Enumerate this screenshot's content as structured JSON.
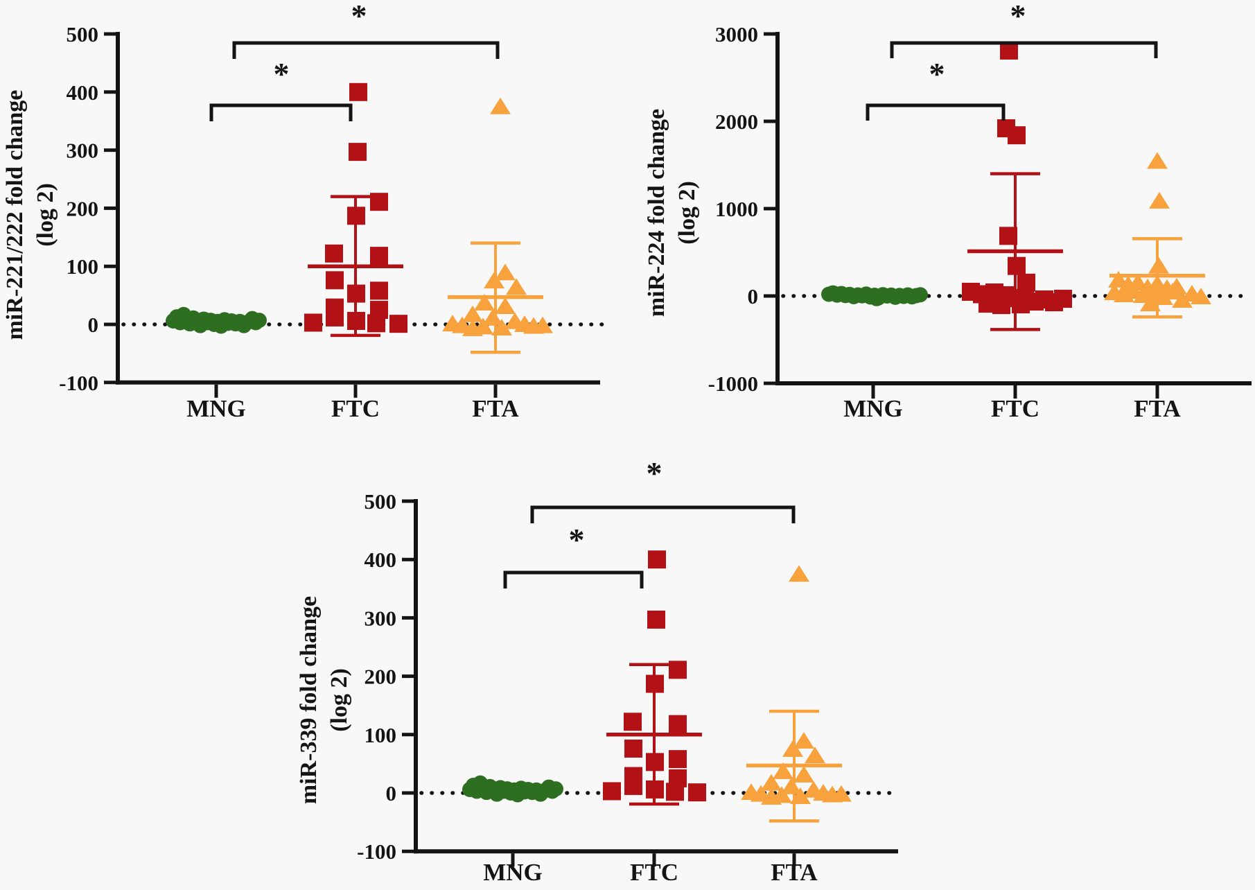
{
  "figure": {
    "background": "#f8f8f9",
    "description": "Three scatter dot plots comparing miRNA fold changes in MNG, FTC and FTA groups with mean/SD error bars and significance brackets"
  },
  "colors": {
    "mng": "#2d6e20",
    "ftc": "#b21216",
    "fta": "#f7a23c",
    "axis": "#141414"
  },
  "chart_data": [
    {
      "id": "mir221_222",
      "type": "scatter",
      "title": "",
      "ylabel_lines": [
        "miR-221/222 fold change",
        "(log 2)"
      ],
      "ylim": [
        -100,
        500
      ],
      "yticks": [
        500,
        400,
        300,
        200,
        100,
        0,
        -100
      ],
      "zero_line": 0,
      "grid": false,
      "categories": [
        "MNG",
        "FTC",
        "FTA"
      ],
      "groups": [
        {
          "name": "MNG",
          "marker": "circle",
          "color_key": "mng",
          "mean": null,
          "err_low": null,
          "err_high": null,
          "points": [
            [
              -62,
              6
            ],
            [
              -57,
              13
            ],
            [
              -52,
              3
            ],
            [
              -47,
              17
            ],
            [
              -43,
              8
            ],
            [
              -38,
              1
            ],
            [
              -33,
              11
            ],
            [
              -28,
              5
            ],
            [
              -23,
              -2
            ],
            [
              -18,
              9
            ],
            [
              -13,
              3
            ],
            [
              -8,
              7
            ],
            [
              -3,
              0
            ],
            [
              2,
              5
            ],
            [
              7,
              -3
            ],
            [
              12,
              8
            ],
            [
              17,
              2
            ],
            [
              22,
              6
            ],
            [
              28,
              1
            ],
            [
              34,
              5
            ],
            [
              40,
              -2
            ],
            [
              46,
              4
            ],
            [
              52,
              10
            ],
            [
              57,
              3
            ],
            [
              62,
              7
            ]
          ]
        },
        {
          "name": "FTC",
          "marker": "square",
          "color_key": "ftc",
          "mean": 100,
          "err_low": -19,
          "err_high": 220,
          "points": [
            [
              4,
              400
            ],
            [
              3,
              297
            ],
            [
              34,
              211
            ],
            [
              1,
              187
            ],
            [
              -31,
              122
            ],
            [
              34,
              118
            ],
            [
              -30,
              76
            ],
            [
              1,
              53
            ],
            [
              34,
              58
            ],
            [
              -30,
              29
            ],
            [
              34,
              25
            ],
            [
              -30,
              12
            ],
            [
              1,
              6
            ],
            [
              -61,
              3
            ],
            [
              30,
              2
            ],
            [
              62,
              1
            ]
          ]
        },
        {
          "name": "FTA",
          "marker": "triangle",
          "color_key": "fta",
          "mean": 47,
          "err_low": -48,
          "err_high": 140,
          "points": [
            [
              7,
              375
            ],
            [
              14,
              89
            ],
            [
              -2,
              75
            ],
            [
              30,
              64
            ],
            [
              -16,
              37
            ],
            [
              14,
              31
            ],
            [
              -33,
              17
            ],
            [
              -4,
              11
            ],
            [
              28,
              5
            ],
            [
              -62,
              1
            ],
            [
              -48,
              -2
            ],
            [
              -18,
              -4
            ],
            [
              9,
              -6
            ],
            [
              42,
              0
            ],
            [
              55,
              -3
            ],
            [
              68,
              -2
            ],
            [
              -33,
              -7
            ]
          ]
        }
      ],
      "comparisons": [
        {
          "between": [
            "MNG",
            "FTC"
          ],
          "label": "*"
        },
        {
          "between": [
            "MNG",
            "FTA"
          ],
          "label": "*"
        }
      ]
    },
    {
      "id": "mir224",
      "type": "scatter",
      "title": "",
      "ylabel_lines": [
        "miR-224 fold change",
        "(log 2)"
      ],
      "ylim": [
        -1000,
        3000
      ],
      "yticks": [
        3000,
        2000,
        1000,
        0,
        -1000
      ],
      "zero_line": 0,
      "grid": false,
      "categories": [
        "MNG",
        "FTC",
        "FTA"
      ],
      "groups": [
        {
          "name": "MNG",
          "marker": "circle",
          "color_key": "mng",
          "mean": null,
          "err_low": null,
          "err_high": null,
          "points": [
            [
              -64,
              20
            ],
            [
              -58,
              35
            ],
            [
              -52,
              10
            ],
            [
              -46,
              28
            ],
            [
              -40,
              5
            ],
            [
              -34,
              18
            ],
            [
              -28,
              -8
            ],
            [
              -22,
              12
            ],
            [
              -16,
              2
            ],
            [
              -10,
              22
            ],
            [
              -4,
              -12
            ],
            [
              2,
              8
            ],
            [
              8,
              -20
            ],
            [
              14,
              15
            ],
            [
              20,
              0
            ],
            [
              26,
              10
            ],
            [
              32,
              -15
            ],
            [
              38,
              6
            ],
            [
              44,
              -5
            ],
            [
              50,
              12
            ],
            [
              56,
              -10
            ],
            [
              62,
              4
            ],
            [
              68,
              14
            ],
            [
              5,
              -30
            ]
          ]
        },
        {
          "name": "FTC",
          "marker": "square",
          "color_key": "ftc",
          "mean": 512,
          "err_low": -384,
          "err_high": 1400,
          "points": [
            [
              -9,
              2810
            ],
            [
              -13,
              1920
            ],
            [
              2,
              1840
            ],
            [
              -10,
              688
            ],
            [
              2,
              344
            ],
            [
              16,
              152
            ],
            [
              -64,
              48
            ],
            [
              -48,
              20
            ],
            [
              -30,
              40
            ],
            [
              -14,
              8
            ],
            [
              0,
              -24
            ],
            [
              14,
              -48
            ],
            [
              28,
              -64
            ],
            [
              42,
              -40
            ],
            [
              56,
              -72
            ],
            [
              69,
              -32
            ],
            [
              -40,
              -88
            ],
            [
              -20,
              -104
            ],
            [
              8,
              -96
            ]
          ]
        },
        {
          "name": "FTA",
          "marker": "triangle",
          "color_key": "fta",
          "mean": 232,
          "err_low": -240,
          "err_high": 656,
          "points": [
            [
              0,
              1544
            ],
            [
              3,
              1088
            ],
            [
              2,
              344
            ],
            [
              -56,
              184
            ],
            [
              -42,
              128
            ],
            [
              -28,
              152
            ],
            [
              -14,
              96
            ],
            [
              0,
              136
            ],
            [
              14,
              88
            ],
            [
              28,
              104
            ],
            [
              -62,
              40
            ],
            [
              -48,
              16
            ],
            [
              -34,
              56
            ],
            [
              -20,
              8
            ],
            [
              -6,
              32
            ],
            [
              8,
              -16
            ],
            [
              22,
              48
            ],
            [
              36,
              -48
            ],
            [
              50,
              24
            ],
            [
              63,
              -8
            ],
            [
              -10,
              -88
            ]
          ]
        }
      ],
      "comparisons": [
        {
          "between": [
            "MNG",
            "FTC"
          ],
          "label": "*"
        },
        {
          "between": [
            "MNG",
            "FTA"
          ],
          "label": "*"
        }
      ]
    },
    {
      "id": "mir339",
      "type": "scatter",
      "title": "",
      "ylabel_lines": [
        "miR-339 fold change",
        "(log 2)"
      ],
      "ylim": [
        -100,
        500
      ],
      "yticks": [
        500,
        400,
        300,
        200,
        100,
        0,
        -100
      ],
      "zero_line": 0,
      "grid": false,
      "categories": [
        "MNG",
        "FTC",
        "FTA"
      ],
      "groups": [
        {
          "name": "MNG",
          "marker": "circle",
          "color_key": "mng",
          "mean": null,
          "err_low": null,
          "err_high": null,
          "points": [
            [
              -62,
              6
            ],
            [
              -57,
              13
            ],
            [
              -52,
              3
            ],
            [
              -47,
              17
            ],
            [
              -43,
              8
            ],
            [
              -38,
              1
            ],
            [
              -33,
              11
            ],
            [
              -28,
              5
            ],
            [
              -23,
              -2
            ],
            [
              -18,
              9
            ],
            [
              -13,
              3
            ],
            [
              -8,
              7
            ],
            [
              -3,
              0
            ],
            [
              2,
              5
            ],
            [
              7,
              -3
            ],
            [
              12,
              8
            ],
            [
              17,
              2
            ],
            [
              22,
              6
            ],
            [
              28,
              1
            ],
            [
              34,
              5
            ],
            [
              40,
              -2
            ],
            [
              46,
              4
            ],
            [
              52,
              10
            ],
            [
              57,
              3
            ],
            [
              62,
              7
            ]
          ]
        },
        {
          "name": "FTC",
          "marker": "square",
          "color_key": "ftc",
          "mean": 100,
          "err_low": -19,
          "err_high": 220,
          "points": [
            [
              4,
              400
            ],
            [
              3,
              297
            ],
            [
              34,
              211
            ],
            [
              1,
              187
            ],
            [
              -31,
              122
            ],
            [
              34,
              118
            ],
            [
              -30,
              76
            ],
            [
              1,
              53
            ],
            [
              34,
              58
            ],
            [
              -30,
              29
            ],
            [
              34,
              25
            ],
            [
              -30,
              12
            ],
            [
              1,
              6
            ],
            [
              -61,
              3
            ],
            [
              30,
              2
            ],
            [
              62,
              1
            ]
          ]
        },
        {
          "name": "FTA",
          "marker": "triangle",
          "color_key": "fta",
          "mean": 47,
          "err_low": -48,
          "err_high": 140,
          "points": [
            [
              7,
              375
            ],
            [
              14,
              89
            ],
            [
              -2,
              75
            ],
            [
              30,
              64
            ],
            [
              -16,
              37
            ],
            [
              14,
              31
            ],
            [
              -33,
              17
            ],
            [
              -4,
              11
            ],
            [
              28,
              5
            ],
            [
              -62,
              1
            ],
            [
              -48,
              -2
            ],
            [
              -18,
              -4
            ],
            [
              9,
              -6
            ],
            [
              42,
              0
            ],
            [
              55,
              -3
            ],
            [
              68,
              -2
            ],
            [
              -33,
              -7
            ]
          ]
        }
      ],
      "comparisons": [
        {
          "between": [
            "MNG",
            "FTC"
          ],
          "label": "*"
        },
        {
          "between": [
            "MNG",
            "FTA"
          ],
          "label": "*"
        }
      ]
    }
  ]
}
